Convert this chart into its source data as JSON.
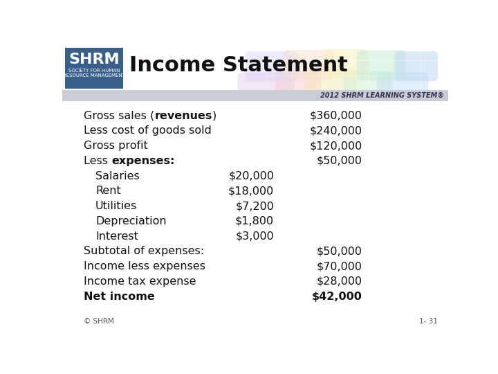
{
  "title": "Income Statement",
  "rows": [
    {
      "label": "Gross sales (revenues)",
      "has_bold": true,
      "normal1": "Gross sales (",
      "bold": "revenues",
      "normal2": ")",
      "indent": 0,
      "col1": "",
      "col2": "$360,000",
      "col2_bold": false
    },
    {
      "label": "Less cost of goods sold",
      "has_bold": false,
      "indent": 0,
      "col1": "",
      "col2": "$240,000",
      "col2_bold": false
    },
    {
      "label": "Gross profit",
      "has_bold": false,
      "indent": 0,
      "col1": "",
      "col2": "$120,000",
      "col2_bold": false
    },
    {
      "label": "Less expenses:",
      "has_bold": true,
      "normal1": "Less ",
      "bold": "expenses:",
      "normal2": "",
      "indent": 0,
      "col1": "",
      "col2": "$50,000",
      "col2_bold": false
    },
    {
      "label": "Salaries",
      "has_bold": false,
      "indent": 1,
      "col1": "$20,000",
      "col2": "",
      "col2_bold": false
    },
    {
      "label": "Rent",
      "has_bold": false,
      "indent": 1,
      "col1": "$18,000",
      "col2": "",
      "col2_bold": false
    },
    {
      "label": "Utilities",
      "has_bold": false,
      "indent": 1,
      "col1": "$7,200",
      "col2": "",
      "col2_bold": false
    },
    {
      "label": "Depreciation",
      "has_bold": false,
      "indent": 1,
      "col1": "$1,800",
      "col2": "",
      "col2_bold": false
    },
    {
      "label": "Interest",
      "has_bold": false,
      "indent": 1,
      "col1": "$3,000",
      "col2": "",
      "col2_bold": false
    },
    {
      "label": "Subtotal of expenses:",
      "has_bold": false,
      "indent": 0,
      "col1": "",
      "col2": "$50,000",
      "col2_bold": false
    },
    {
      "label": "Income less expenses",
      "has_bold": false,
      "indent": 0,
      "col1": "",
      "col2": "$70,000",
      "col2_bold": false
    },
    {
      "label": "Income tax expense",
      "has_bold": false,
      "indent": 0,
      "col1": "",
      "col2": "$28,000",
      "col2_bold": false
    },
    {
      "label": "Net income",
      "has_bold": false,
      "label_bold": true,
      "indent": 0,
      "col1": "",
      "col2": "$42,000",
      "col2_bold": true
    }
  ],
  "footer_left": "© SHRM",
  "footer_right": "1- 31",
  "stripe_text": "2012 SHRM LEARNING SYSTEM®",
  "shrm_box_color": "#3a5f8a",
  "stripe_color": "#c8cdd6",
  "bg_color": "#ffffff"
}
